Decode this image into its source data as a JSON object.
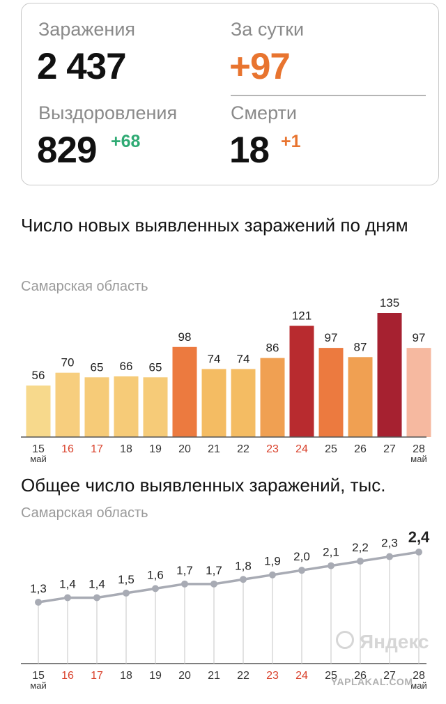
{
  "stats": {
    "infections": {
      "label": "Заражения",
      "value": "2 437"
    },
    "per_day": {
      "label": "За сутки",
      "value": "+97",
      "color": "#e8742f"
    },
    "recoveries": {
      "label": "Выздоровления",
      "value": "829",
      "delta": "+68",
      "delta_color": "#2eaa73"
    },
    "deaths": {
      "label": "Смерти",
      "value": "18",
      "delta": "+1",
      "delta_color": "#e8742f"
    }
  },
  "watermark": {
    "text": "Яндекс"
  },
  "footer_watermark": "YAPLAKAL.COM",
  "chart_data": [
    {
      "type": "bar",
      "title": "Число новых выявленных заражений по дням",
      "subtitle": "Самарская область",
      "categories": [
        "15",
        "16",
        "17",
        "18",
        "19",
        "20",
        "21",
        "22",
        "23",
        "24",
        "25",
        "26",
        "27",
        "28"
      ],
      "month_labels": {
        "first": "май",
        "last": "май"
      },
      "weekend_categories": [
        "16",
        "17",
        "23",
        "24"
      ],
      "values": [
        56,
        70,
        65,
        66,
        65,
        98,
        74,
        74,
        86,
        121,
        97,
        87,
        135,
        97
      ],
      "bar_colors": [
        "#f7d98c",
        "#f7ce7e",
        "#f6cb78",
        "#f6cb78",
        "#f6cb78",
        "#ec7a3f",
        "#f4bc63",
        "#f4bc63",
        "#f0a052",
        "#b82b2f",
        "#ec7a3f",
        "#f0a052",
        "#a62130",
        "#f6b9a0"
      ],
      "ylim": [
        0,
        135
      ]
    },
    {
      "type": "line",
      "title": "Общее число выявленных заражений, тыс.",
      "subtitle": "Самарская область",
      "categories": [
        "15",
        "16",
        "17",
        "18",
        "19",
        "20",
        "21",
        "22",
        "23",
        "24",
        "25",
        "26",
        "27",
        "28"
      ],
      "month_labels": {
        "first": "май",
        "last": "май"
      },
      "weekend_categories": [
        "16",
        "17",
        "23",
        "24"
      ],
      "values": [
        1.3,
        1.4,
        1.4,
        1.5,
        1.6,
        1.7,
        1.7,
        1.8,
        1.9,
        2.0,
        2.1,
        2.2,
        2.3,
        2.4
      ],
      "value_labels": [
        "1,3",
        "1,4",
        "1,4",
        "1,5",
        "1,6",
        "1,7",
        "1,7",
        "1,8",
        "1,9",
        "2,0",
        "2,1",
        "2,2",
        "2,3",
        "2,4"
      ],
      "line_color": "#a8abb4",
      "ylim": [
        0,
        2.4
      ]
    }
  ],
  "colors": {
    "weekend_tick": "#d9412b",
    "tick": "#333333"
  }
}
